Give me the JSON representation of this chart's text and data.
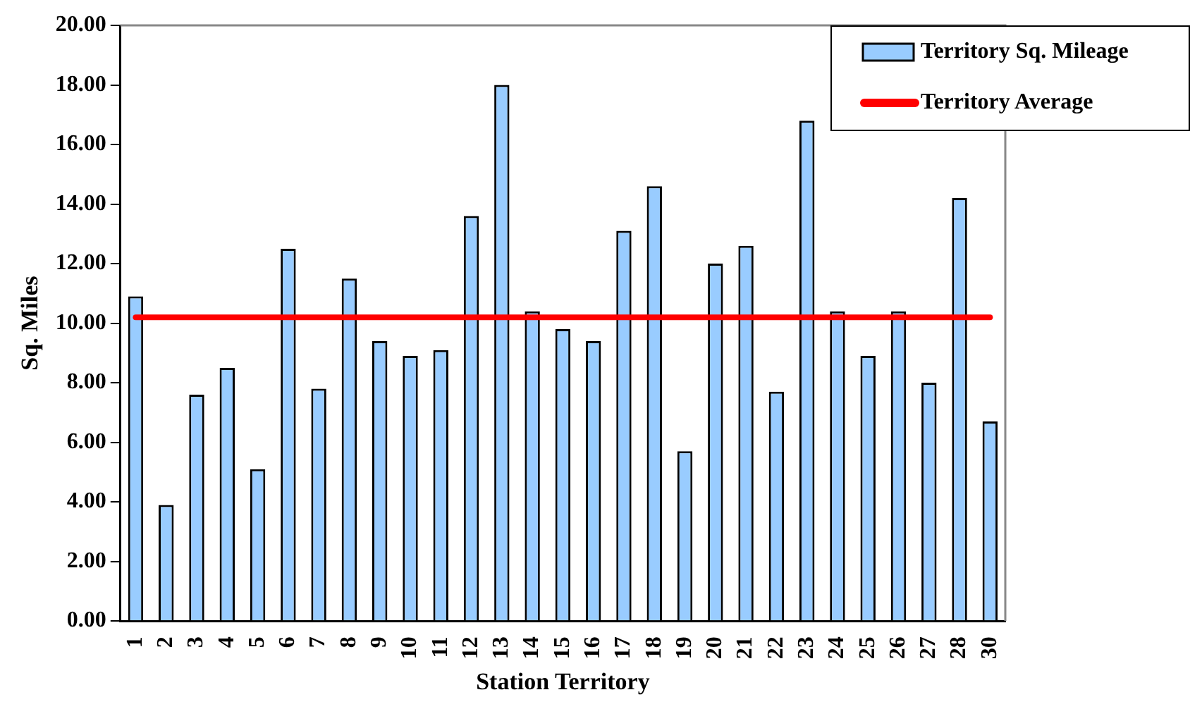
{
  "chart_data": {
    "type": "bar",
    "xlabel": "Station Territory",
    "ylabel": "Sq. Miles",
    "categories": [
      "1",
      "2",
      "3",
      "4",
      "5",
      "6",
      "7",
      "8",
      "9",
      "10",
      "11",
      "12",
      "13",
      "14",
      "15",
      "16",
      "17",
      "18",
      "19",
      "20",
      "21",
      "22",
      "23",
      "24",
      "25",
      "26",
      "27",
      "28",
      "30"
    ],
    "series": [
      {
        "name": "Territory Sq. Mileage",
        "color": "#99ccff",
        "values": [
          10.9,
          3.9,
          7.6,
          8.5,
          5.1,
          12.5,
          7.8,
          11.5,
          9.4,
          8.9,
          9.1,
          13.6,
          18.0,
          10.4,
          9.8,
          9.4,
          13.1,
          14.6,
          5.7,
          12.0,
          12.6,
          7.7,
          16.8,
          10.4,
          8.9,
          10.4,
          8.0,
          14.2,
          6.7
        ]
      },
      {
        "name": "Territory Average",
        "type": "line",
        "color": "#ff0000",
        "values": [
          10.2,
          10.2,
          10.2,
          10.2,
          10.2,
          10.2,
          10.2,
          10.2,
          10.2,
          10.2,
          10.2,
          10.2,
          10.2,
          10.2,
          10.2,
          10.2,
          10.2,
          10.2,
          10.2,
          10.2,
          10.2,
          10.2,
          10.2,
          10.2,
          10.2,
          10.2,
          10.2,
          10.2,
          10.2
        ]
      }
    ],
    "ylim": [
      0,
      20
    ],
    "yticks": [
      {
        "value": 0,
        "label": "0.00"
      },
      {
        "value": 2,
        "label": "2.00"
      },
      {
        "value": 4,
        "label": "4.00"
      },
      {
        "value": 6,
        "label": "6.00"
      },
      {
        "value": 8,
        "label": "8.00"
      },
      {
        "value": 10,
        "label": "10.00"
      },
      {
        "value": 12,
        "label": "12.00"
      },
      {
        "value": 14,
        "label": "14.00"
      },
      {
        "value": 16,
        "label": "16.00"
      },
      {
        "value": 18,
        "label": "18.00"
      },
      {
        "value": 20,
        "label": "20.00"
      }
    ],
    "grid": false,
    "legend": "top right",
    "marker": "none"
  }
}
